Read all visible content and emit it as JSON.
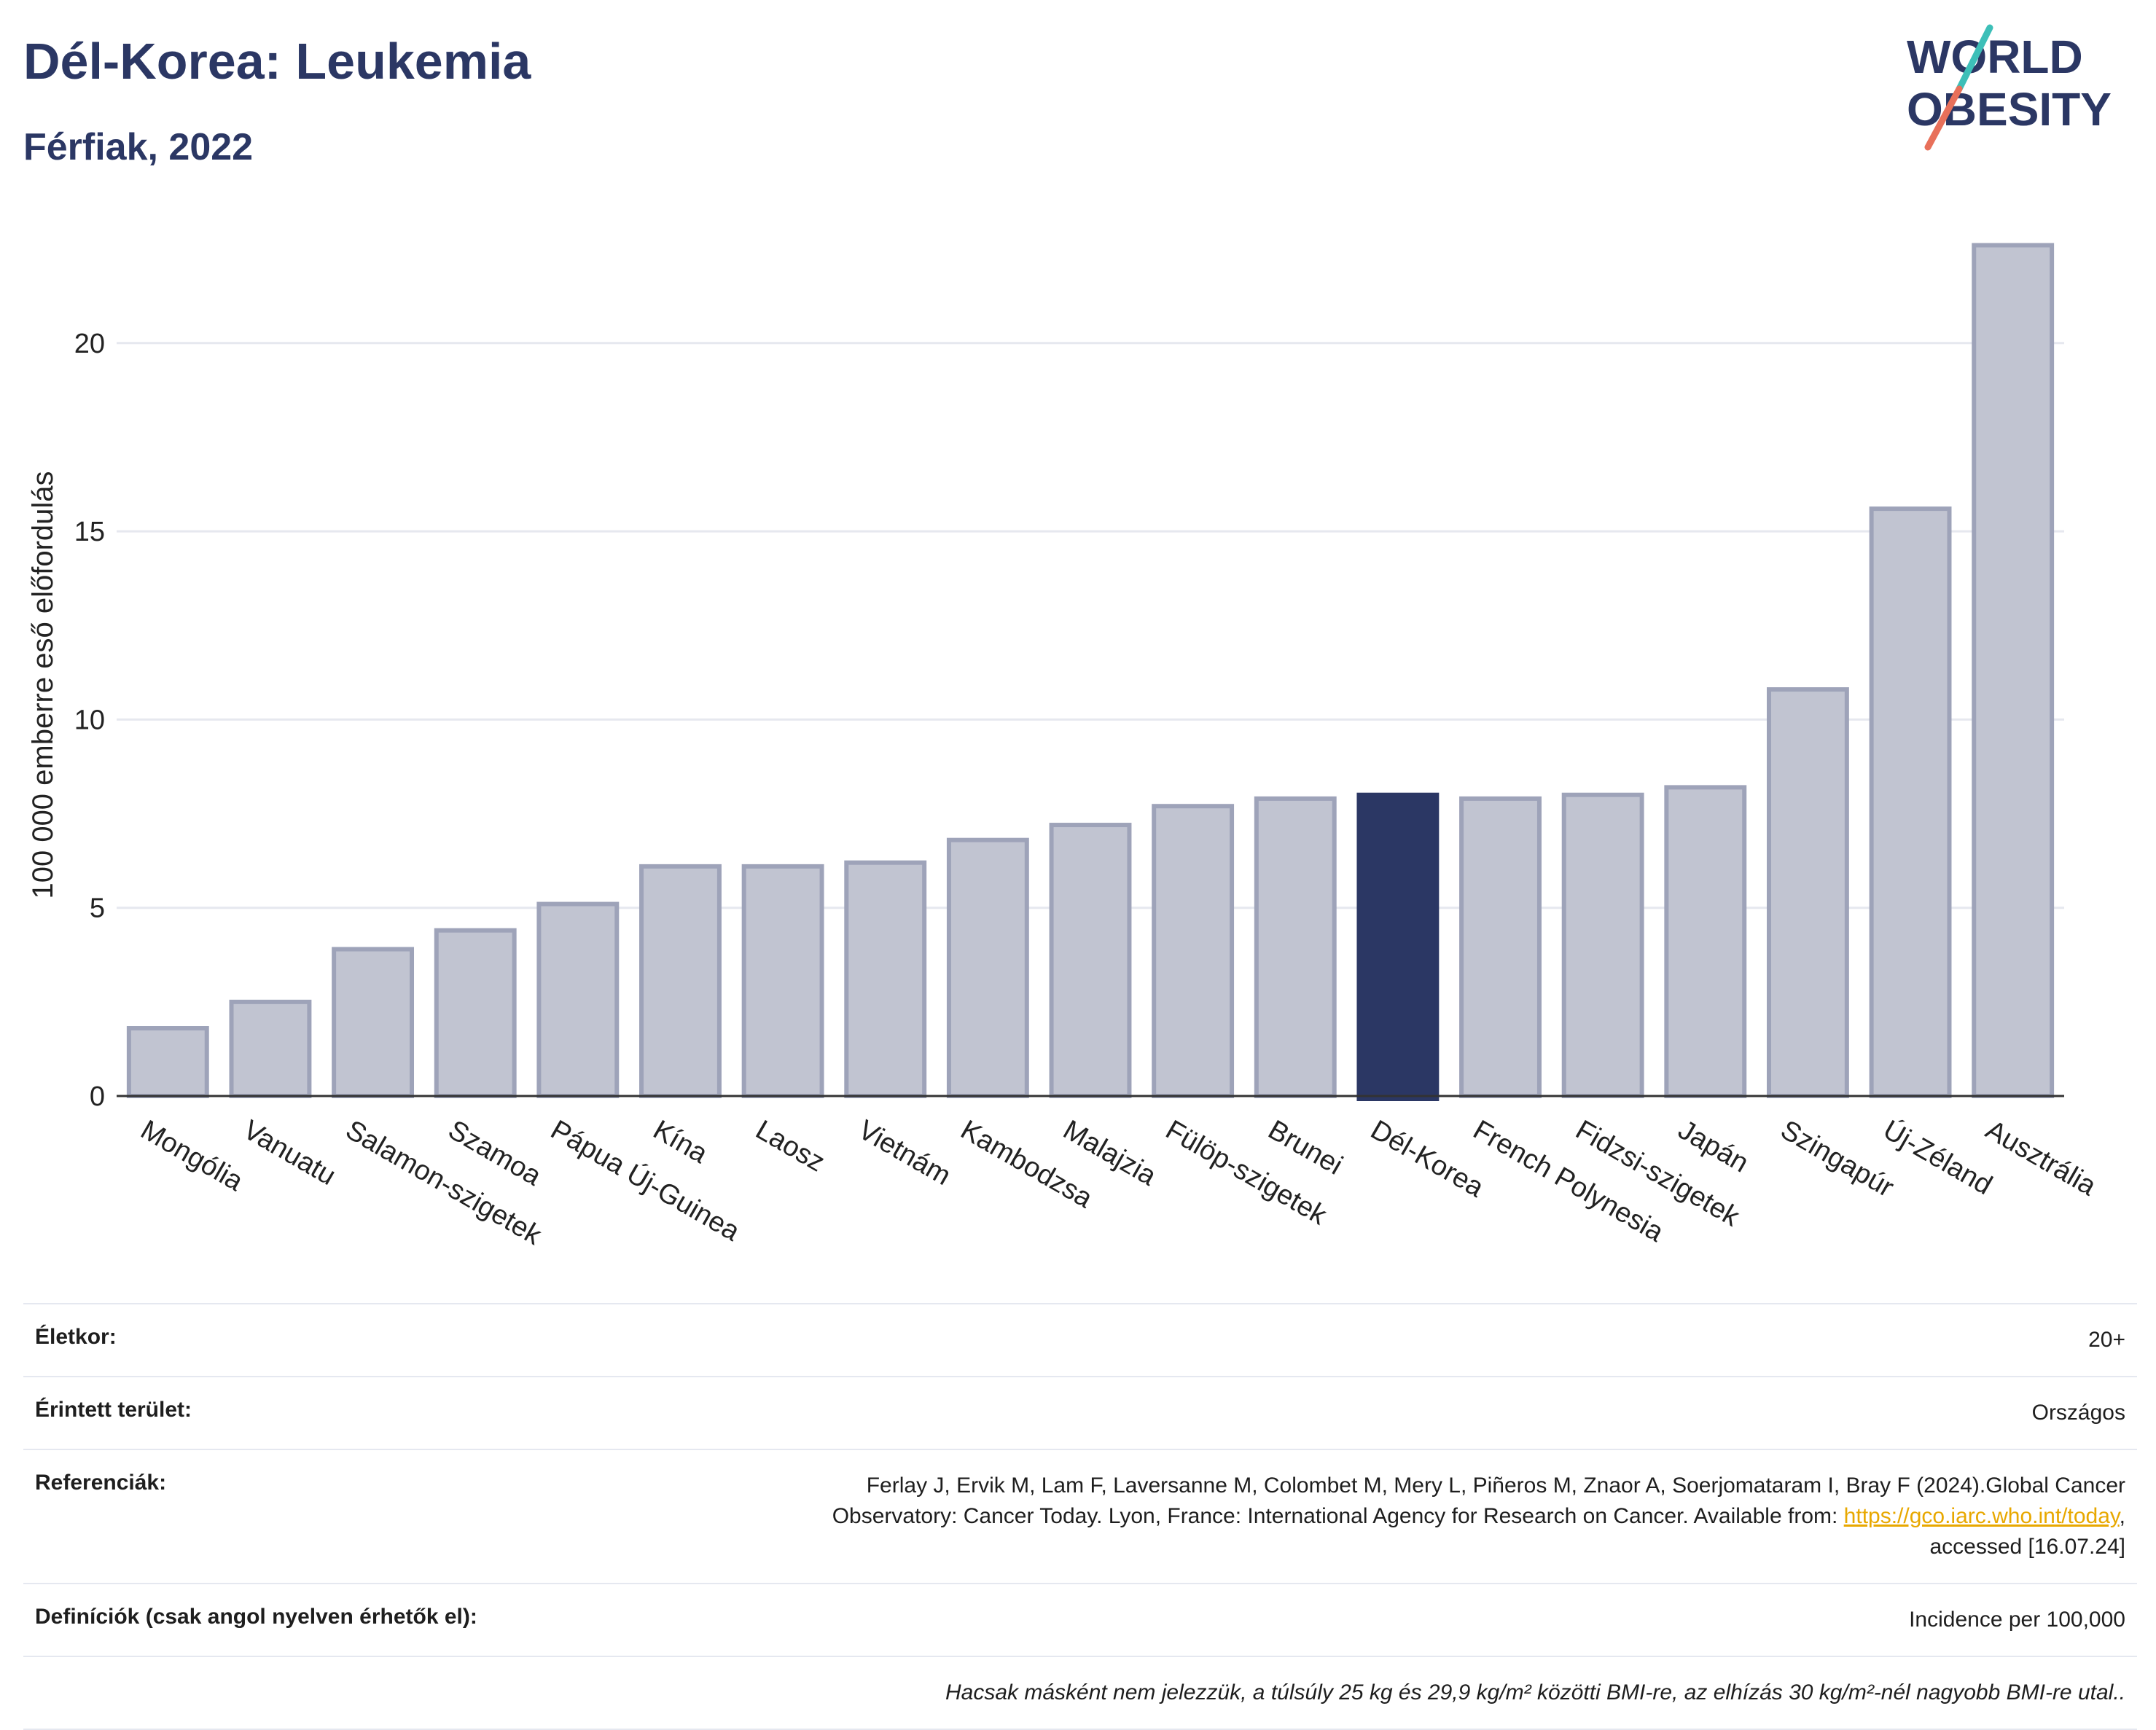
{
  "header": {
    "title": "Dél-Korea: Leukemia",
    "subtitle": "Férfiak, 2022",
    "logo_line1": "WORLD",
    "logo_line2": "OBESITY"
  },
  "colors": {
    "bar": "#c1c4d1",
    "bar_border": "#9ea3b9",
    "highlight": "#2b3764",
    "text_dark": "#2b3764",
    "logo_slash_teal": "#3dbfb8",
    "logo_slash_red": "#e8705a",
    "link": "#e8a800"
  },
  "chart_data": {
    "type": "bar",
    "ylabel": "100 000 emberre eső előfordulás",
    "ylim": [
      0,
      23.5
    ],
    "yticks": [
      0,
      5,
      10,
      15,
      20
    ],
    "grid": true,
    "highlight_category": "Dél-Korea",
    "categories": [
      "Mongólia",
      "Vanuatu",
      "Salamon-szigetek",
      "Szamoa",
      "Pápua Új-Guinea",
      "Kína",
      "Laosz",
      "Vietnám",
      "Kambodzsa",
      "Malajzia",
      "Fülöp-szigetek",
      "Brunei",
      "Dél-Korea",
      "French Polynesia",
      "Fidzsi-szigetek",
      "Japán",
      "Szingapúr",
      "Új-Zéland",
      "Ausztrália"
    ],
    "values": [
      1.8,
      2.5,
      3.9,
      4.4,
      5.1,
      6.1,
      6.1,
      6.2,
      6.8,
      7.2,
      7.7,
      7.9,
      8.0,
      7.9,
      8.0,
      8.2,
      10.8,
      15.6,
      22.6
    ]
  },
  "info": {
    "age_label": "Életkor:",
    "age_value": "20+",
    "area_label": "Érintett terület:",
    "area_value": "Országos",
    "refs_label": "Referenciák:",
    "refs_line1": "Ferlay J, Ervik M, Lam F, Laversanne M, Colombet M, Mery L, Piñeros M, Znaor A, Soerjomataram I, Bray F (2024).Global Cancer",
    "refs_line2a": "Observatory: Cancer Today. Lyon, France: International Agency for Research on Cancer. Available from: ",
    "refs_link": "https://gco.iarc.who.int/today",
    "refs_line2b": ",",
    "refs_line3": "accessed [16.07.24]",
    "defs_label": "Definíciók (csak angol nyelven érhetők el):",
    "defs_value": "Incidence per 100,000",
    "note": "Hacsak másként nem jelezzük, a túlsúly 25 kg és 29,9 kg/m² közötti BMI-re, az elhízás 30 kg/m²-nél nagyobb BMI-re utal.."
  }
}
